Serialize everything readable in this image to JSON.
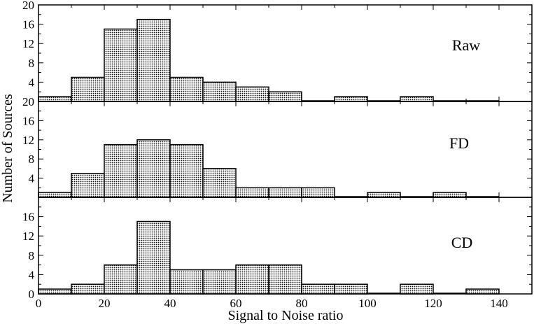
{
  "chart_data": [
    {
      "type": "bar",
      "label": "Raw",
      "bin_edges": [
        0,
        10,
        20,
        30,
        40,
        50,
        60,
        70,
        80,
        90,
        100,
        110,
        120,
        130,
        140
      ],
      "values": [
        1,
        5,
        15,
        17,
        5,
        4,
        3,
        2,
        0,
        1,
        0,
        1,
        0,
        0
      ],
      "ylim": [
        0,
        20
      ],
      "yticks": [
        "4",
        "8",
        "12",
        "16",
        "20"
      ]
    },
    {
      "type": "bar",
      "label": "FD",
      "bin_edges": [
        0,
        10,
        20,
        30,
        40,
        50,
        60,
        70,
        80,
        90,
        100,
        110,
        120,
        130,
        140
      ],
      "values": [
        1,
        5,
        11,
        12,
        11,
        6,
        2,
        2,
        2,
        0,
        1,
        0,
        1,
        0
      ],
      "ylim": [
        0,
        20
      ],
      "yticks": [
        "4",
        "8",
        "12",
        "16",
        "20"
      ]
    },
    {
      "type": "bar",
      "label": "CD",
      "bin_edges": [
        0,
        10,
        20,
        30,
        40,
        50,
        60,
        70,
        80,
        90,
        100,
        110,
        120,
        130,
        140
      ],
      "values": [
        1,
        2,
        6,
        15,
        5,
        5,
        6,
        6,
        2,
        2,
        0,
        2,
        0,
        1
      ],
      "ylim": [
        0,
        20
      ],
      "yticks": [
        "0",
        "4",
        "8",
        "12",
        "16"
      ]
    }
  ],
  "axes": {
    "xlabel": "Signal to Noise ratio",
    "ylabel": "Number of Sources",
    "xlim": [
      0,
      150
    ],
    "xticks": [
      "0",
      "20",
      "40",
      "60",
      "80",
      "100",
      "120",
      "140"
    ],
    "xtick_values": [
      0,
      20,
      40,
      60,
      80,
      100,
      120,
      140
    ]
  },
  "colors": {
    "bar_fill": "#a8a8a8",
    "bar_stroke": "#000000",
    "pattern_dot": "#111111"
  }
}
